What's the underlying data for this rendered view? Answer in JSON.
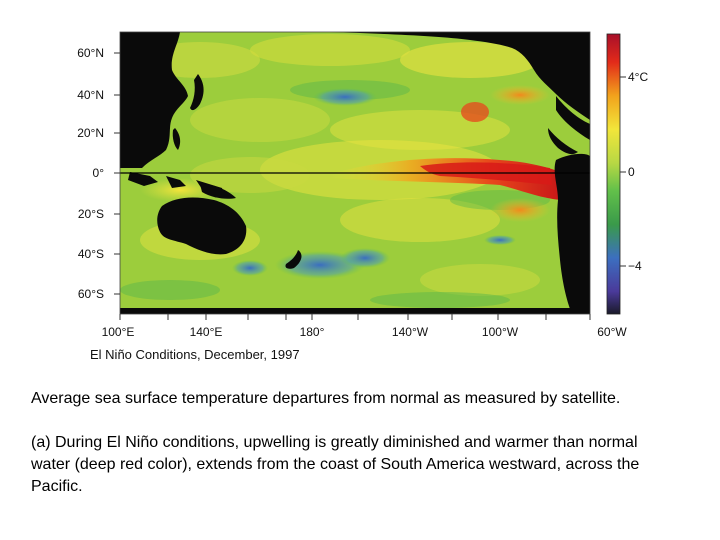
{
  "map": {
    "title": "El Niño Conditions, December, 1997",
    "lat_labels": [
      "60°N",
      "40°N",
      "20°N",
      "0°",
      "20°S",
      "40°S",
      "60°S"
    ],
    "lon_labels": [
      "100°E",
      "140°E",
      "180°",
      "140°W",
      "100°W",
      "60°W"
    ],
    "colorbar": {
      "labels": [
        "4°C",
        "0",
        "−4"
      ],
      "colors": [
        "#a8102a",
        "#e22a1a",
        "#f2a21c",
        "#f2e63a",
        "#b8d844",
        "#62c04a",
        "#3a9a4a",
        "#3c6fc0",
        "#4a3a9a",
        "#1a1a2a"
      ]
    },
    "colors": {
      "land": "#0a0a0a",
      "ocean_base": "#9ccd3c",
      "warm_anomaly": "#e8261c",
      "cool_anomaly": "#3a78c8"
    }
  },
  "caption": {
    "paragraph1": "Average sea surface temperature departures from normal as measured by satellite.",
    "paragraph2": "(a) During El Niño conditions, upwelling is greatly diminished and warmer than normal water (deep red color), extends from the coast of South America westward, across the Pacific."
  }
}
